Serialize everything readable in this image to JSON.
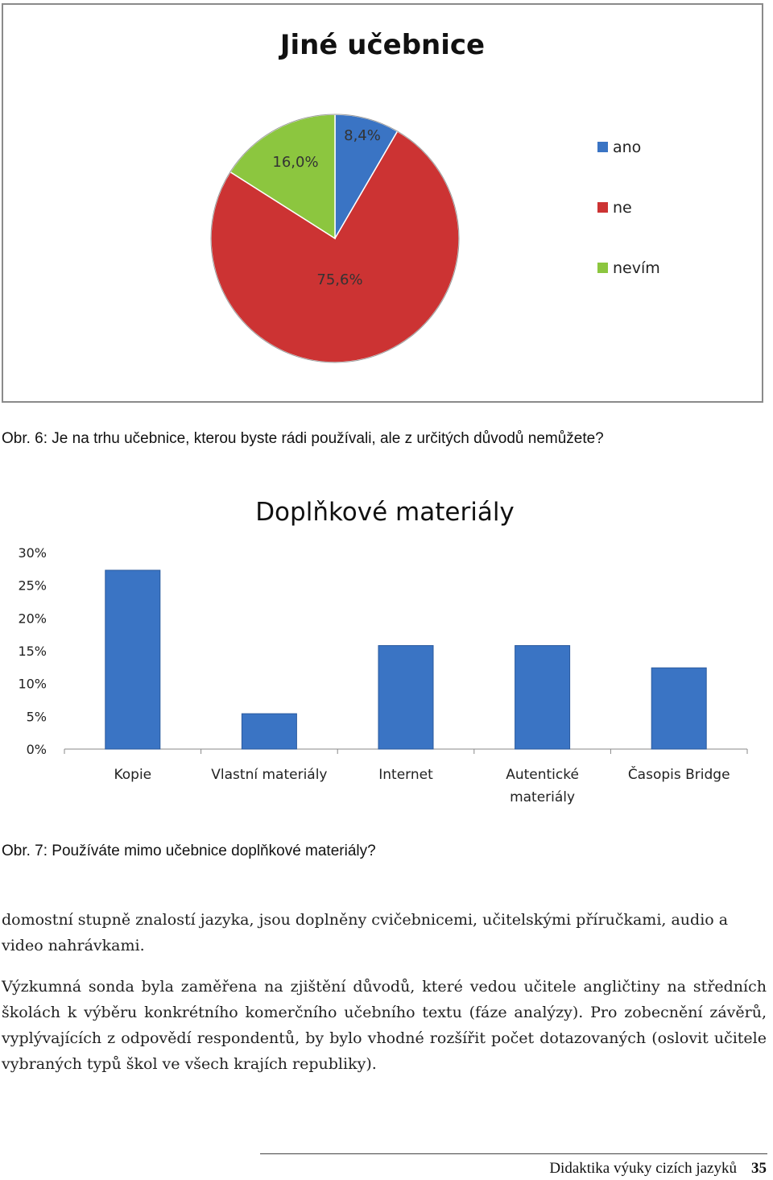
{
  "pie_chart": {
    "chart_data": {
      "type": "pie",
      "title": "Jiné učebnice",
      "slices": [
        {
          "label": "ano",
          "value": 8.4,
          "display": "8,4%",
          "color": "#3a74c4"
        },
        {
          "label": "ne",
          "value": 75.6,
          "display": "75,6%",
          "color": "#cc3333"
        },
        {
          "label": "nevím",
          "value": 16.0,
          "display": "16,0%",
          "color": "#8cc63f"
        }
      ],
      "legend_placement": "right"
    }
  },
  "caption_fig6": "Obr. 6: Je na trhu učebnice, kterou byste rádi používali, ale z určitých důvodů nemůžete?",
  "bar_chart": {
    "chart_data": {
      "type": "bar",
      "title": "Doplňkové materiály",
      "categories": [
        "Kopie",
        "Vlastní materiály",
        "Internet",
        "Autentické materiály",
        "Časopis Bridge"
      ],
      "category_lines": [
        [
          "Kopie"
        ],
        [
          "Vlastní materiály"
        ],
        [
          "Internet"
        ],
        [
          "Autentické",
          "materiály"
        ],
        [
          "Časopis Bridge"
        ]
      ],
      "values": [
        27.3,
        5.4,
        15.8,
        15.8,
        12.4
      ],
      "ylim": [
        0,
        30
      ],
      "yticks": [
        "0%",
        "5%",
        "10%",
        "15%",
        "20%",
        "25%",
        "30%"
      ],
      "bar_color": "#3a74c4",
      "grid": false
    }
  },
  "caption_fig7": "Obr. 7: Používáte mimo učebnice doplňkové materiály?",
  "paragraph1": "domostní stupně znalostí jazyka, jsou doplněny cvičebnicemi, učitelskými příručkami, audio a video nahrávkami.",
  "paragraph2": "Výzkumná sonda byla zaměřena na zjištění důvodů, které vedou učitele angličtiny na středních školách k výběru konkrétního komerčního učebního textu (fáze analýzy). Pro zobecnění závěrů, vyplývajících z odpovědí respondentů, by bylo vhodné rozšířit počet dotazovaných (oslovit učitele vybraných typů škol ve všech krajích republiky).",
  "footer": {
    "text": "Didaktika výuky cizích jazyků",
    "page": "35"
  }
}
